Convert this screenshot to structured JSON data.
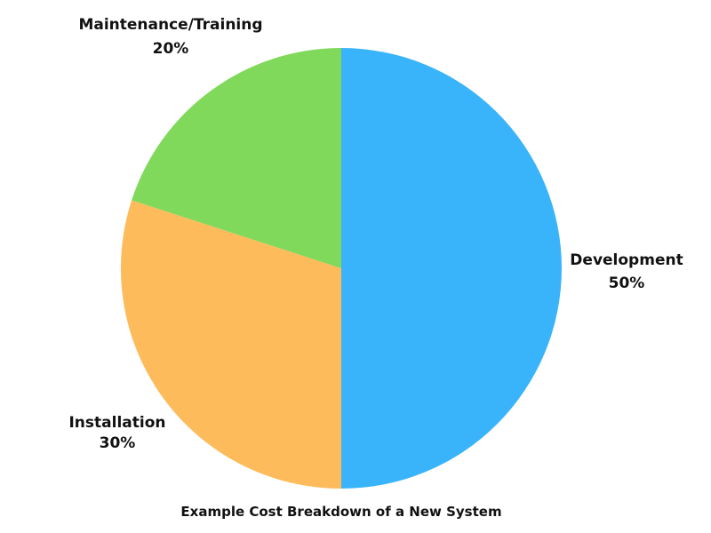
{
  "chart_data": {
    "type": "pie",
    "title": "Example Cost Breakdown of a New System",
    "slices": [
      {
        "label": "Development",
        "percent_label": "50%",
        "value": 50,
        "color": "#39b4fb"
      },
      {
        "label": "Installation",
        "percent_label": "30%",
        "value": 30,
        "color": "#fdbb5b"
      },
      {
        "label": "Maintenance/Training",
        "percent_label": "20%",
        "value": 20,
        "color": "#80d95a"
      }
    ],
    "start_angle": "top, clockwise",
    "legend": "none"
  }
}
